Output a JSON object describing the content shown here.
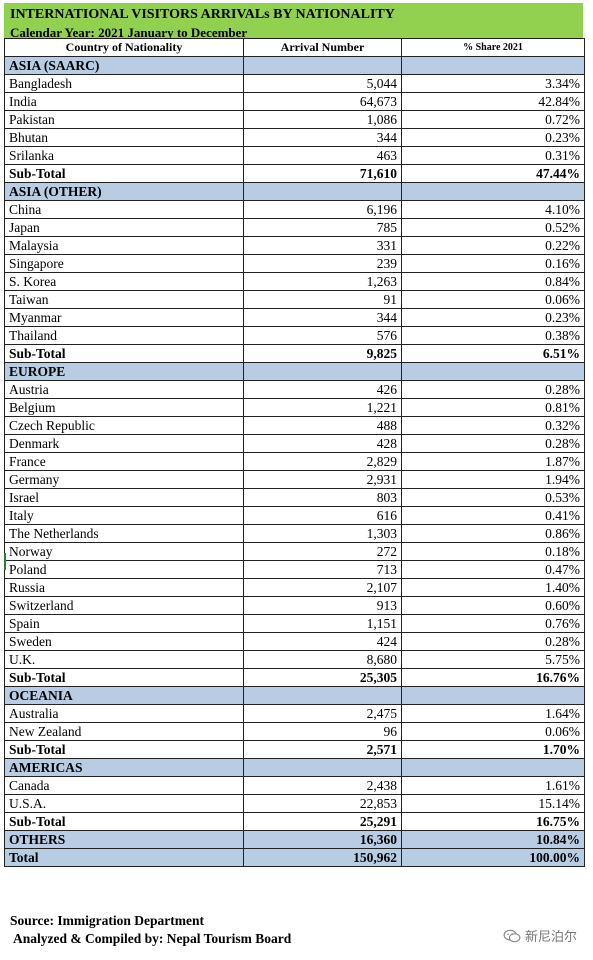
{
  "title": "INTERNATIONAL VISITORS ARRIVALs BY NATIONALITY",
  "subtitle": "Calendar Year: 2021 January to December",
  "headers": {
    "country": "Country of Nationality",
    "arrival": "Arrival Number",
    "share": "% Share 2021"
  },
  "rows": [
    {
      "type": "section",
      "country": "ASIA (SAARC)",
      "arrival": "",
      "share": ""
    },
    {
      "type": "row",
      "country": "Bangladesh",
      "arrival": "5,044",
      "share": "3.34%"
    },
    {
      "type": "row",
      "country": "India",
      "arrival": "64,673",
      "share": "42.84%"
    },
    {
      "type": "row",
      "country": "Pakistan",
      "arrival": "1,086",
      "share": "0.72%"
    },
    {
      "type": "row",
      "country": "Bhutan",
      "arrival": "344",
      "share": "0.23%"
    },
    {
      "type": "row",
      "country": "Srilanka",
      "arrival": "463",
      "share": "0.31%"
    },
    {
      "type": "subtotal",
      "country": "Sub-Total",
      "arrival": "71,610",
      "share": "47.44%"
    },
    {
      "type": "section",
      "country": "ASIA (OTHER)",
      "arrival": "",
      "share": ""
    },
    {
      "type": "row",
      "country": "China",
      "arrival": "6,196",
      "share": "4.10%"
    },
    {
      "type": "row",
      "country": "Japan",
      "arrival": "785",
      "share": "0.52%"
    },
    {
      "type": "row",
      "country": "Malaysia",
      "arrival": "331",
      "share": "0.22%"
    },
    {
      "type": "row",
      "country": "Singapore",
      "arrival": "239",
      "share": "0.16%"
    },
    {
      "type": "row",
      "country": "S. Korea",
      "arrival": "1,263",
      "share": "0.84%"
    },
    {
      "type": "row",
      "country": "Taiwan",
      "arrival": "91",
      "share": "0.06%"
    },
    {
      "type": "row",
      "country": "Myanmar",
      "arrival": "344",
      "share": "0.23%"
    },
    {
      "type": "row",
      "country": "Thailand",
      "arrival": "576",
      "share": "0.38%"
    },
    {
      "type": "subtotal",
      "country": "Sub-Total",
      "arrival": "9,825",
      "share": "6.51%"
    },
    {
      "type": "section",
      "country": "EUROPE",
      "arrival": "",
      "share": ""
    },
    {
      "type": "row",
      "country": "Austria",
      "arrival": "426",
      "share": "0.28%"
    },
    {
      "type": "row",
      "country": "Belgium",
      "arrival": "1,221",
      "share": "0.81%"
    },
    {
      "type": "row",
      "country": "Czech Republic",
      "arrival": "488",
      "share": "0.32%"
    },
    {
      "type": "row",
      "country": "Denmark",
      "arrival": "428",
      "share": "0.28%"
    },
    {
      "type": "row",
      "country": "France",
      "arrival": "2,829",
      "share": "1.87%"
    },
    {
      "type": "row",
      "country": "Germany",
      "arrival": "2,931",
      "share": "1.94%"
    },
    {
      "type": "row",
      "country": "Israel",
      "arrival": "803",
      "share": "0.53%"
    },
    {
      "type": "row",
      "country": "Italy",
      "arrival": "616",
      "share": "0.41%"
    },
    {
      "type": "row",
      "country": "The Netherlands",
      "arrival": "1,303",
      "share": "0.86%"
    },
    {
      "type": "row",
      "country": "Norway",
      "arrival": "272",
      "share": "0.18%"
    },
    {
      "type": "row",
      "country": "Poland",
      "arrival": "713",
      "share": "0.47%"
    },
    {
      "type": "row",
      "country": "Russia",
      "arrival": "2,107",
      "share": "1.40%"
    },
    {
      "type": "row",
      "country": "Switzerland",
      "arrival": "913",
      "share": "0.60%"
    },
    {
      "type": "row",
      "country": "Spain",
      "arrival": "1,151",
      "share": "0.76%"
    },
    {
      "type": "row",
      "country": "Sweden",
      "arrival": "424",
      "share": "0.28%"
    },
    {
      "type": "row",
      "country": "U.K.",
      "arrival": "8,680",
      "share": "5.75%"
    },
    {
      "type": "subtotal",
      "country": "Sub-Total",
      "arrival": "25,305",
      "share": "16.76%"
    },
    {
      "type": "section",
      "country": "OCEANIA",
      "arrival": "",
      "share": ""
    },
    {
      "type": "row",
      "country": "Australia",
      "arrival": "2,475",
      "share": "1.64%"
    },
    {
      "type": "row",
      "country": "New Zealand",
      "arrival": "96",
      "share": "0.06%"
    },
    {
      "type": "subtotal",
      "country": "Sub-Total",
      "arrival": "2,571",
      "share": "1.70%"
    },
    {
      "type": "section",
      "country": "AMERICAS",
      "arrival": "",
      "share": ""
    },
    {
      "type": "row",
      "country": "Canada",
      "arrival": "2,438",
      "share": "1.61%"
    },
    {
      "type": "row",
      "country": "U.S.A.",
      "arrival": "22,853",
      "share": "15.14%"
    },
    {
      "type": "subtotal",
      "country": "Sub-Total",
      "arrival": "25,291",
      "share": "16.75%"
    },
    {
      "type": "others",
      "country": "OTHERS",
      "arrival": "16,360",
      "share": "10.84%"
    },
    {
      "type": "total",
      "country": "Total",
      "arrival": "150,962",
      "share": "100.00%"
    }
  ],
  "footer": {
    "source": "Source: Immigration Department",
    "compiled": "Analyzed & Compiled by: Nepal Tourism Board"
  },
  "watermark": {
    "text": "新尼泊尔",
    "icon": "wechat-icon"
  },
  "colors": {
    "title_bg": "#92d050",
    "section_bg": "#b8cce4"
  }
}
